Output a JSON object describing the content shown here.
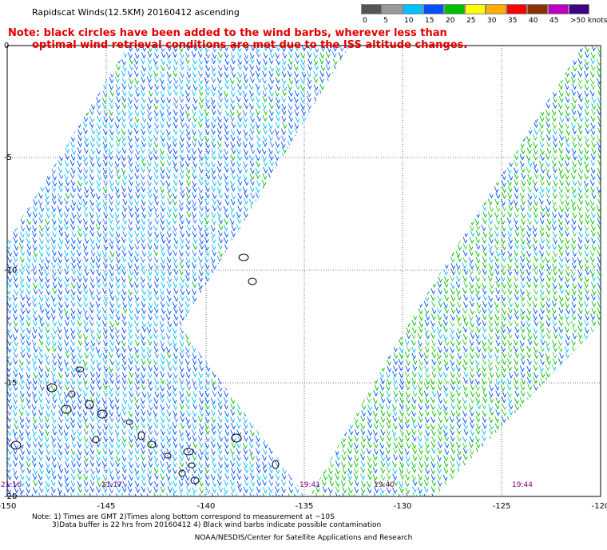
{
  "title": "Rapidscat Winds(12.5KM) 20160412 ascending",
  "note_line1": "Note: black circles have been added to the wind barbs, wherever less than",
  "note_line2": "optimal wind retrieval conditions are met due to the ISS altitude changes.",
  "colorbar": {
    "labels": [
      "0",
      "5",
      "10",
      "15",
      "20",
      "25",
      "30",
      "35",
      "40",
      "45",
      ">50 knots"
    ],
    "colors": [
      "#555555",
      "#999999",
      "#00c0ff",
      "#0050ff",
      "#00c000",
      "#ffff00",
      "#ffb000",
      "#ff0000",
      "#8b2e00",
      "#c000c0",
      "#400080"
    ]
  },
  "lon_labels": [
    "-150",
    "-145",
    "-140",
    "-135",
    "-130",
    "-125",
    "-120"
  ],
  "lat_labels": [
    "0",
    "-5",
    "-10",
    "-15",
    "-20"
  ],
  "time_labels": [
    "21:16",
    "21:17",
    "19:41",
    "19:40",
    "19:44"
  ],
  "footer_line1": "Note: 1) Times are GMT 2)Times along bottom correspond to measurement at ~10S",
  "footer_line2": "3)Data buffer is 22 hrs from 20160412 4) Black wind barbs indicate possible contamination",
  "credit": "NOAA/NESDIS/Center for Satellite Applications and Research"
}
